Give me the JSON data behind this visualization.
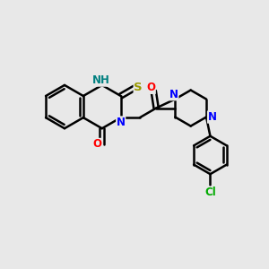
{
  "bg_color": "#e8e8e8",
  "bond_color": "#000000",
  "bond_width": 1.8,
  "atom_colors": {
    "N": "#0000ff",
    "O": "#ff0000",
    "S": "#999900",
    "Cl": "#00aa00",
    "H_label": "#008080"
  },
  "font_size": 8.5,
  "NH_color": "#008080"
}
